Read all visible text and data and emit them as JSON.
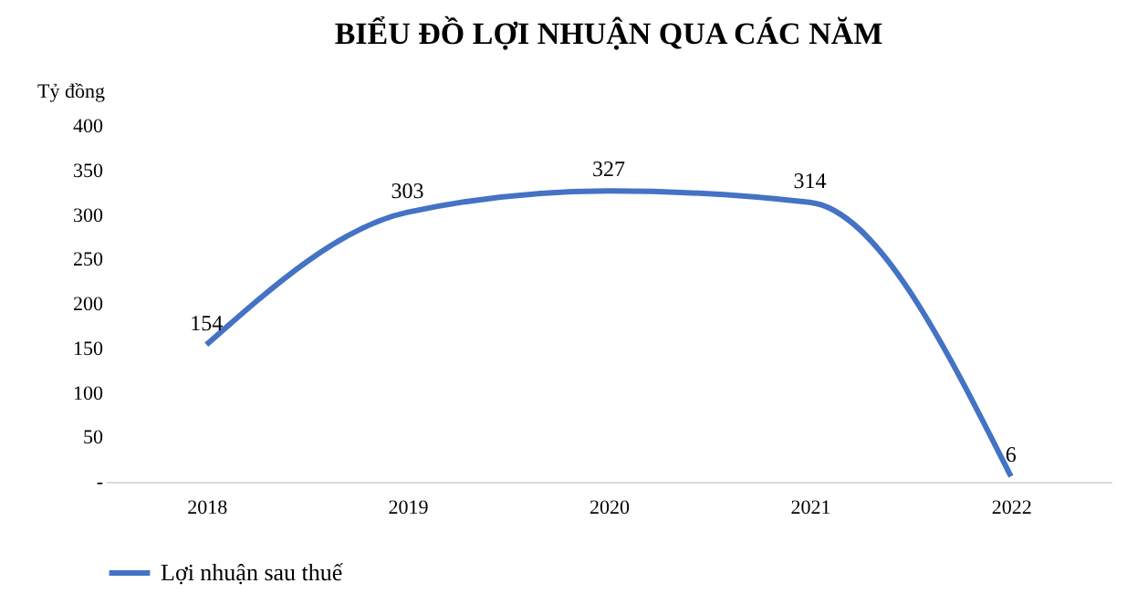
{
  "chart_data": {
    "type": "line",
    "title": "BIỂU ĐỒ LỢI NHUẬN QUA CÁC NĂM",
    "ylabel": "Tỷ đồng",
    "categories": [
      "2018",
      "2019",
      "2020",
      "2021",
      "2022"
    ],
    "series": [
      {
        "name": "Lợi nhuận sau thuế",
        "color": "#4472c4",
        "values": [
          154,
          303,
          327,
          314,
          6
        ]
      }
    ],
    "ylim": [
      0,
      400
    ],
    "yticks": [
      {
        "value": 0,
        "label": "-"
      },
      50,
      100,
      150,
      200,
      250,
      300,
      350,
      400
    ],
    "data_labels": true,
    "grid": false,
    "legend": "bottom",
    "marker": "none",
    "line_style": "solid"
  }
}
